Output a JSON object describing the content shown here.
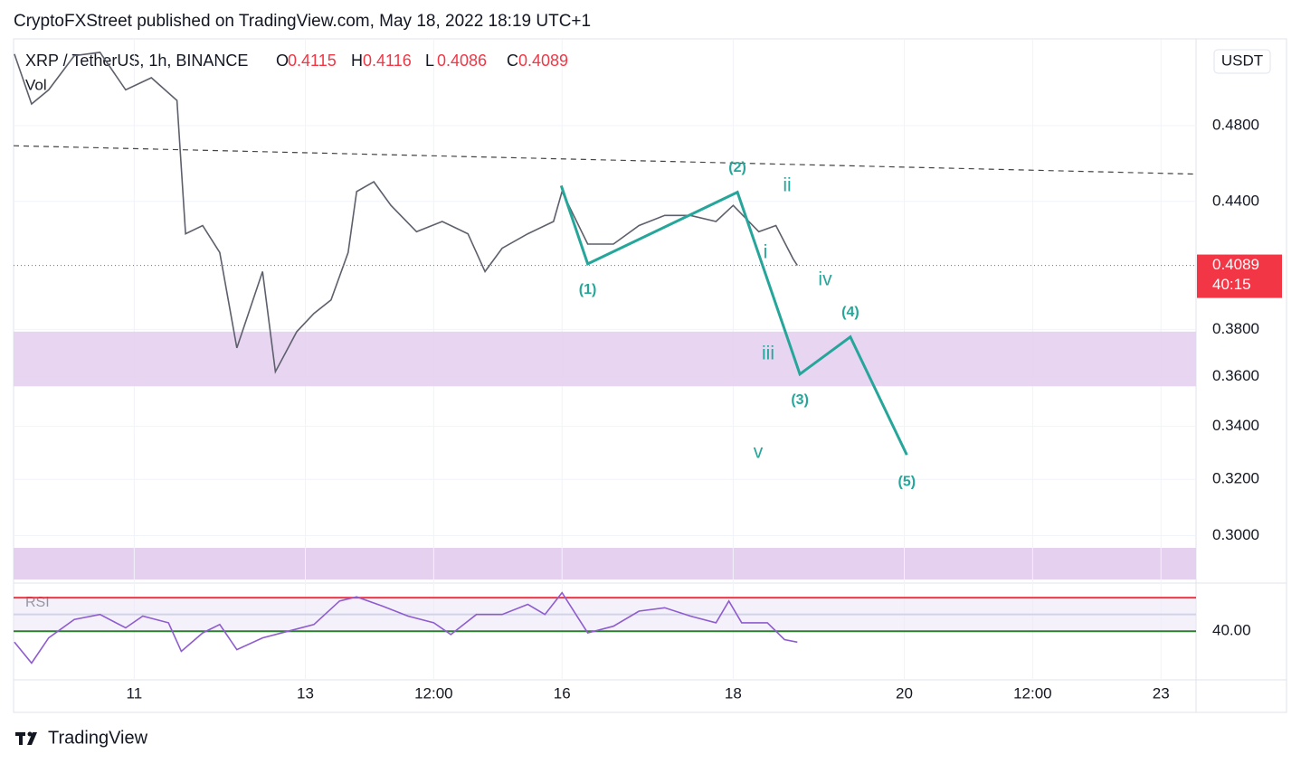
{
  "header": {
    "text": "CryptoFXStreet published on TradingView.com, May 18, 2022 18:19 UTC+1"
  },
  "footer": {
    "brand": "TradingView"
  },
  "chart_data": [
    {
      "type": "line",
      "title": "XRP / TetherUS, 1h, BINANCE",
      "volume_label": "Vol",
      "currency": "USDT",
      "ohlc": [
        {
          "letter": "O",
          "value": 0.4115
        },
        {
          "letter": "H",
          "value": 0.4116
        },
        {
          "letter": "L",
          "value": 0.4086
        },
        {
          "letter": "C",
          "value": 0.4089
        }
      ],
      "last_price": 0.4089,
      "countdown": "40:15",
      "last_color": "#f23645",
      "color": "#5d606b",
      "x": [
        9.6,
        9.8,
        10.0,
        10.3,
        10.6,
        10.9,
        11.2,
        11.5,
        11.6,
        11.8,
        12.0,
        12.2,
        12.5,
        12.65,
        12.9,
        13.1,
        13.3,
        13.5,
        13.6,
        13.8,
        14.0,
        14.3,
        14.6,
        14.9,
        15.1,
        15.3,
        15.6,
        15.9,
        16.0,
        16.3,
        16.6,
        16.9,
        17.2,
        17.5,
        17.8,
        18.0,
        18.3,
        18.5,
        18.7,
        18.75
      ],
      "values": [
        0.521,
        0.492,
        0.5,
        0.52,
        0.522,
        0.5,
        0.507,
        0.494,
        0.424,
        0.428,
        0.415,
        0.372,
        0.406,
        0.362,
        0.379,
        0.387,
        0.393,
        0.415,
        0.445,
        0.45,
        0.438,
        0.425,
        0.43,
        0.424,
        0.406,
        0.417,
        0.424,
        0.43,
        0.445,
        0.419,
        0.419,
        0.428,
        0.433,
        0.433,
        0.43,
        0.438,
        0.425,
        0.428,
        0.412,
        0.4089
      ],
      "wave": {
        "color": "#26a69a",
        "x": [
          15.99,
          16.3,
          18.05,
          18.78,
          19.37,
          20.03
        ],
        "values": [
          0.448,
          0.4096,
          0.4447,
          0.361,
          0.3767,
          0.3291
        ],
        "labels": [
          null,
          "(1)",
          "(2)",
          "(3)",
          "(4)",
          "(5)"
        ]
      },
      "subwave_labels": [
        "i",
        "ii",
        "iii",
        "iv",
        "v"
      ],
      "trendline": {
        "x": [
          9.59,
          23.41
        ],
        "values": [
          0.469,
          0.454
        ]
      },
      "zone": [
        0.356,
        0.379
      ],
      "zone_color": "#e6d0ef",
      "log": true,
      "grid": true,
      "ylim": [
        0.285,
        0.529
      ],
      "yticks": [
        {
          "value": 0.3,
          "label": "0.3000"
        },
        {
          "value": 0.32,
          "label": "0.3200"
        },
        {
          "value": 0.34,
          "label": "0.3400"
        },
        {
          "value": 0.36,
          "label": "0.3600"
        },
        {
          "value": 0.38,
          "label": "0.3800"
        },
        {
          "value": 0.44,
          "label": "0.4400"
        },
        {
          "value": 0.48,
          "label": "0.4800"
        }
      ],
      "xlim": [
        9.59,
        23.41
      ],
      "xticks": [
        11,
        13,
        {
          "value": 14.5,
          "label": "12:00"
        },
        16,
        18,
        20,
        {
          "value": 21.5,
          "label": "12:00"
        },
        23
      ]
    },
    {
      "type": "line",
      "title": "RSI",
      "color": "#8e5ccf",
      "x": [
        9.6,
        9.8,
        10.0,
        10.3,
        10.6,
        10.9,
        11.1,
        11.4,
        11.55,
        11.8,
        12.0,
        12.2,
        12.5,
        12.8,
        13.1,
        13.4,
        13.6,
        13.9,
        14.2,
        14.5,
        14.7,
        15.0,
        15.3,
        15.6,
        15.8,
        16.0,
        16.3,
        16.6,
        16.9,
        17.2,
        17.5,
        17.8,
        17.95,
        18.1,
        18.4,
        18.6,
        18.75
      ],
      "values": [
        33.5,
        21,
        36,
        47,
        50,
        42,
        49,
        45,
        28,
        39,
        44,
        29,
        36,
        40,
        44,
        58,
        60.5,
        55,
        49,
        45,
        38,
        50,
        50,
        56,
        50,
        63,
        39,
        43,
        52,
        54,
        49,
        45,
        58,
        45,
        45,
        35,
        33.5
      ],
      "bands": [
        {
          "value": 60,
          "color": "#f23645"
        },
        {
          "value": 50,
          "color": "#d1d4e8"
        },
        {
          "value": 40,
          "color": "#2e7d32"
        }
      ],
      "ylim": [
        11,
        66
      ],
      "yticks": [
        {
          "value": 40,
          "label": "40.00"
        }
      ]
    }
  ]
}
